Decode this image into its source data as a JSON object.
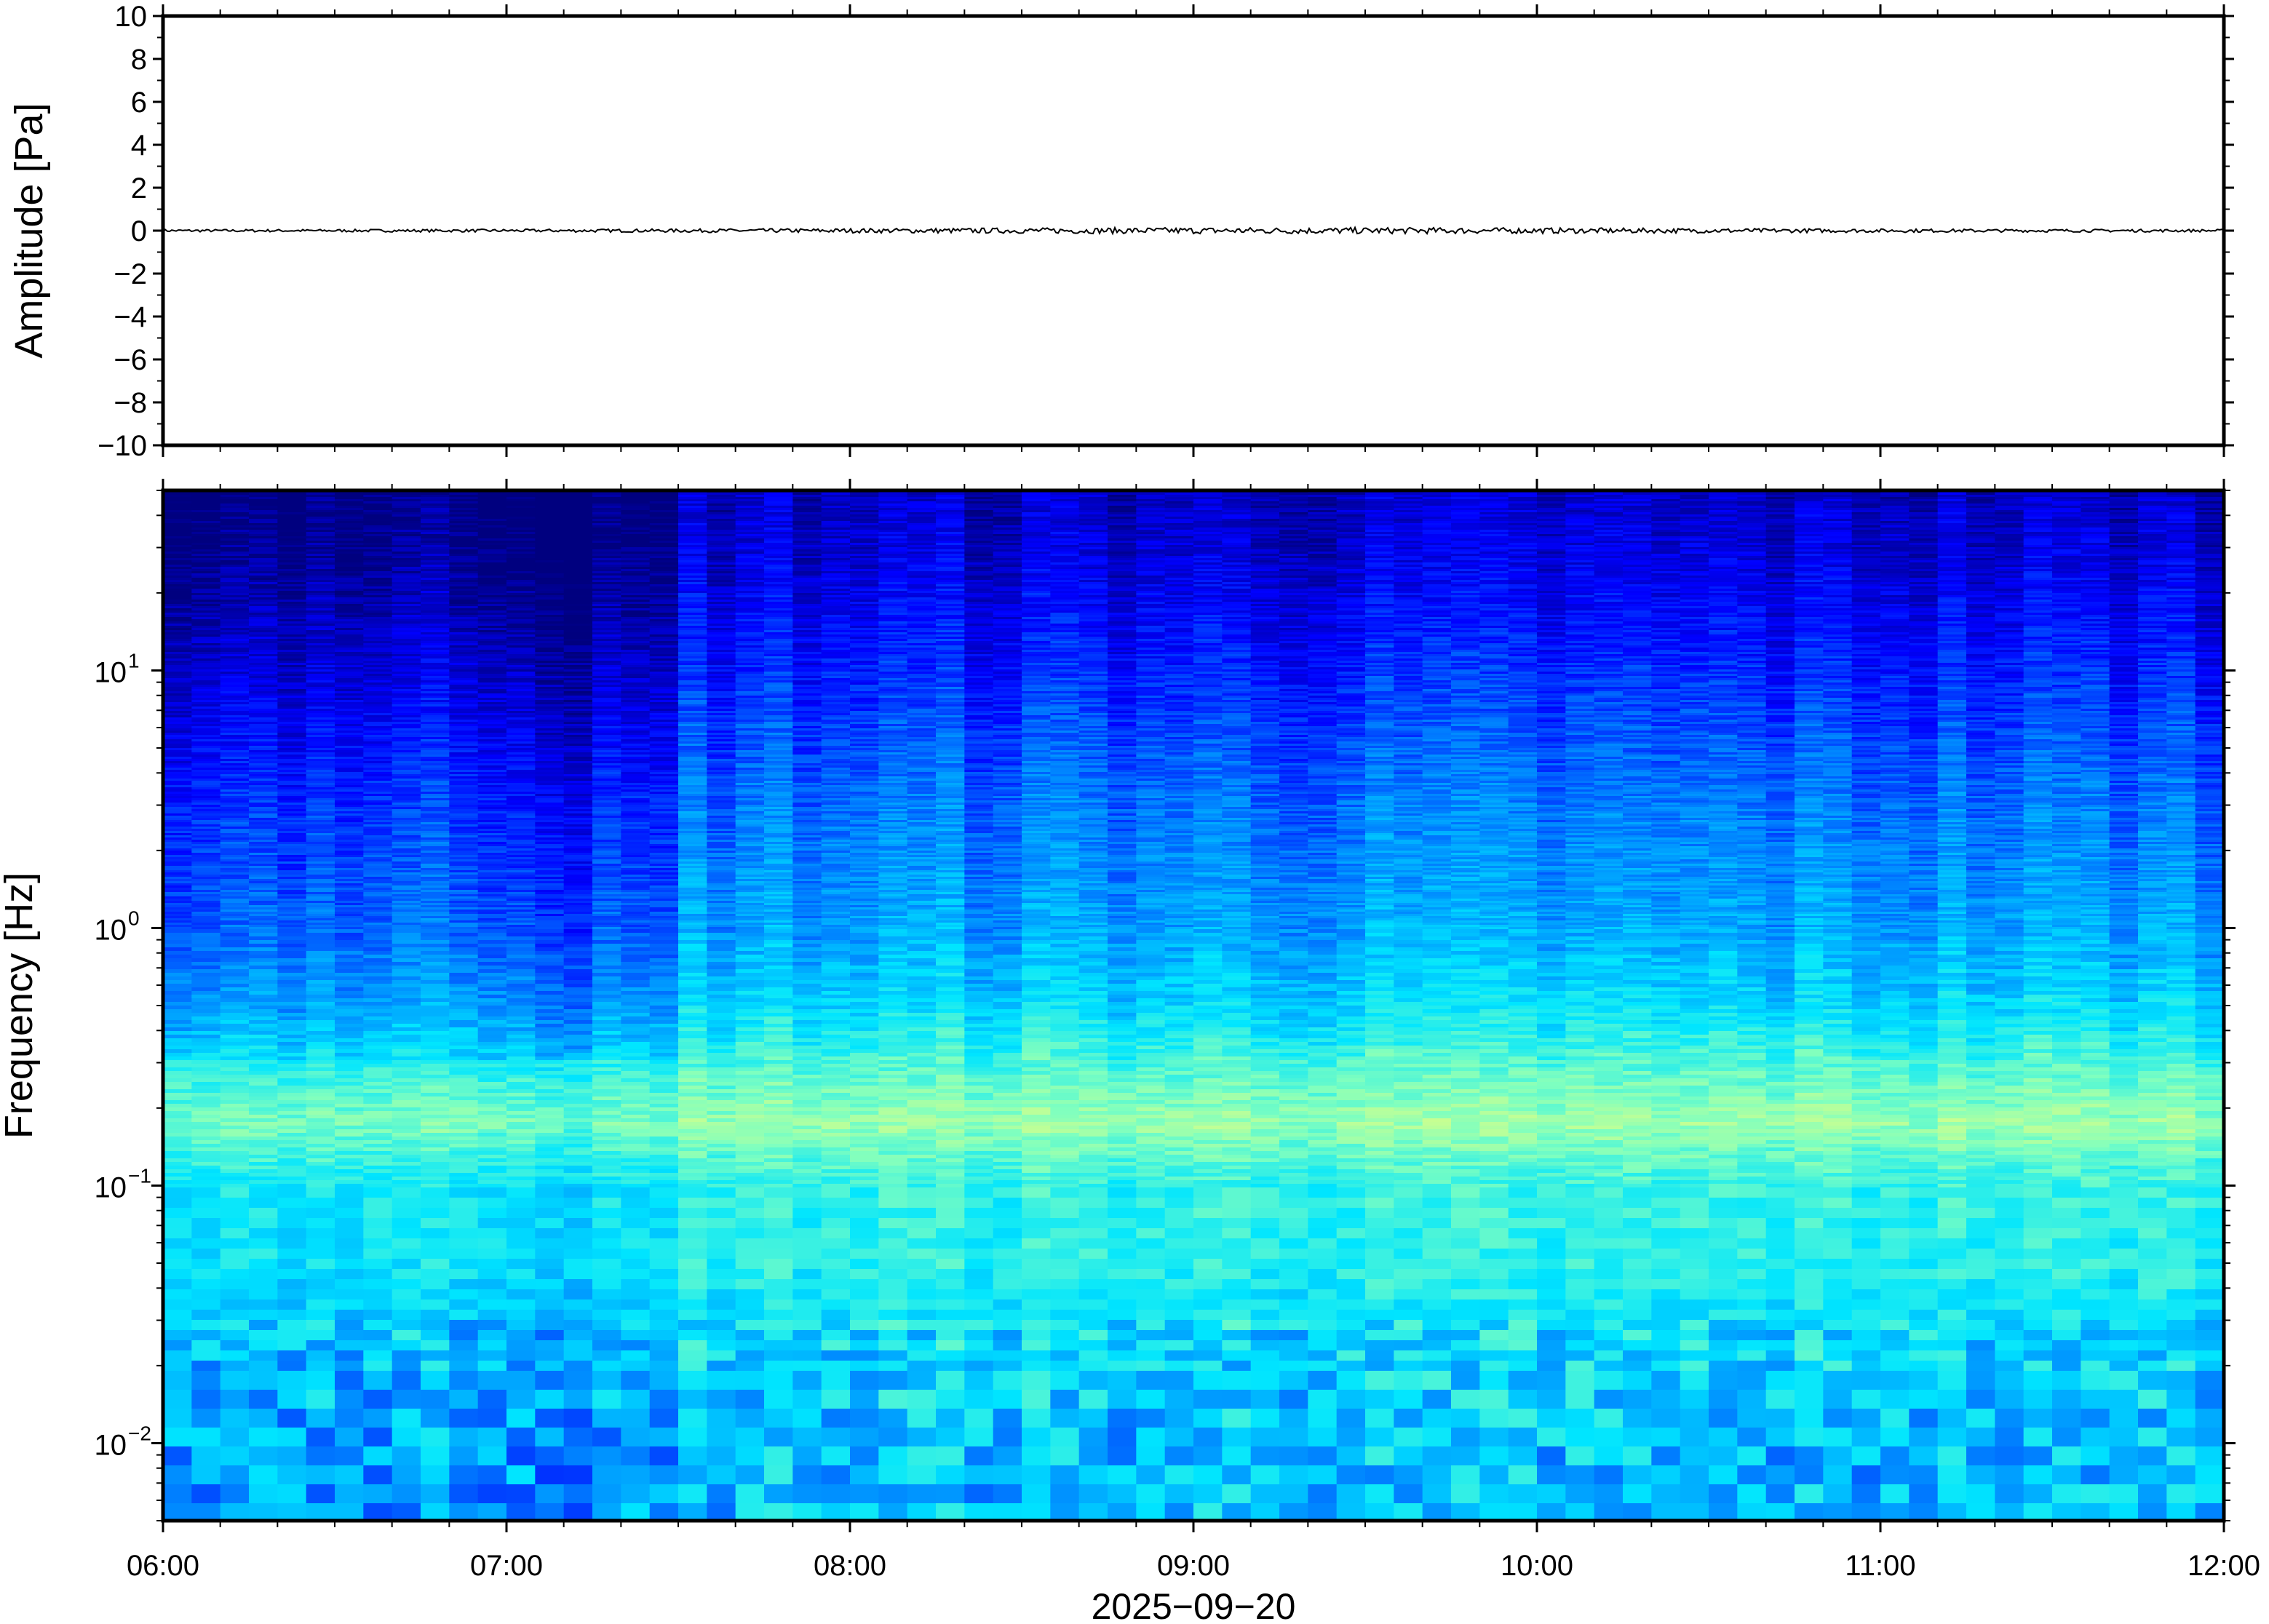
{
  "chart_data": [
    {
      "type": "line",
      "panel": "waveform",
      "ylabel": "Amplitude [Pa]",
      "ylim": [
        -10,
        10
      ],
      "yticks": [
        10,
        8,
        6,
        4,
        2,
        0,
        -2,
        -4,
        -6,
        -8,
        -10
      ],
      "ytick_labels": [
        "10",
        "8",
        "6",
        "4",
        "2",
        "0",
        "−2",
        "−4",
        "−6",
        "−8",
        "−10"
      ],
      "xlim": [
        "06:00",
        "12:00"
      ],
      "series": [
        {
          "color": "#000000",
          "approx_value": 0,
          "noise_peak": 0.15
        }
      ],
      "grid": false
    },
    {
      "type": "heatmap",
      "panel": "spectrogram",
      "ylabel": "Frequency [Hz]",
      "yscale": "log",
      "ylim": [
        0.005,
        50
      ],
      "yticks": [
        0.01,
        0.1,
        1,
        10
      ],
      "ytick_labels": [
        {
          "base": "10",
          "exp": "−2"
        },
        {
          "base": "10",
          "exp": "−1"
        },
        {
          "base": "10",
          "exp": "0"
        },
        {
          "base": "10",
          "exp": "1"
        }
      ],
      "xlabel": "2025−09−20",
      "xlim": [
        "06:00",
        "12:00"
      ],
      "xtick_labels": [
        "06:00",
        "07:00",
        "08:00",
        "09:00",
        "10:00",
        "11:00",
        "12:00"
      ],
      "colormap": [
        "#00007f",
        "#0000ff",
        "#007fff",
        "#00e5ff",
        "#7fffbf",
        "#e5ff7f"
      ],
      "description_bands": [
        {
          "freq_range": [
            10,
            50
          ],
          "level": "lowest"
        },
        {
          "freq_range": [
            1,
            10
          ],
          "level": "low"
        },
        {
          "freq_range": [
            0.15,
            0.3
          ],
          "level": "highest"
        },
        {
          "freq_range": [
            0.005,
            0.05
          ],
          "level": "medium"
        }
      ],
      "grid": false
    }
  ]
}
